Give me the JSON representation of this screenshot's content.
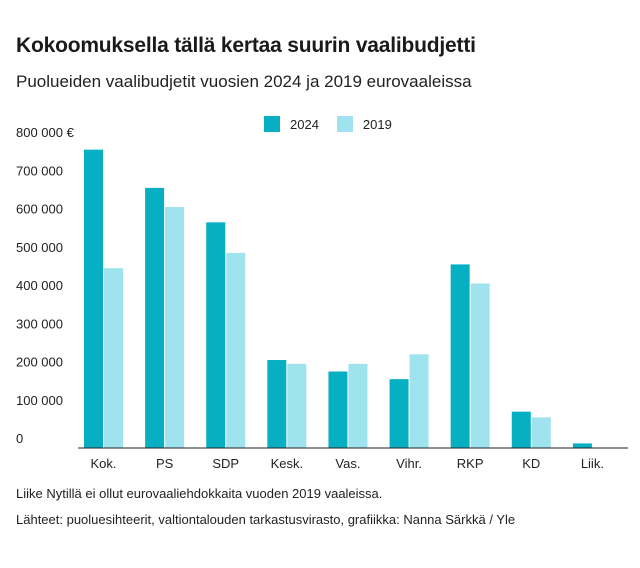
{
  "title": "Kokoomuksella tällä kertaa suurin vaalibudjetti",
  "subtitle": "Puolueiden vaalibudjetit vuosien 2024 ja 2019  eurovaaleissa",
  "footnote": "Liike Nytillä ei ollut eurovaaliehdokkaita vuoden 2019 vaaleissa.",
  "source": "Lähteet: puoluesihteerit, valtiontalouden tarkastusvirasto, grafiikka: Nanna Särkkä / Yle",
  "colors": {
    "series_2024": "#06b0c2",
    "series_2019": "#9ee3ee",
    "axis": "#222222"
  },
  "chart_data": {
    "type": "bar",
    "title": "Kokoomuksella tällä kertaa suurin vaalibudjetti",
    "subtitle": "Puolueiden vaalibudjetit vuosien 2024 ja 2019  eurovaaleissa",
    "categories": [
      "Kok.",
      "PS",
      "SDP",
      "Kesk.",
      "Vas.",
      "Vihr.",
      "RKP",
      "KD",
      "Liik."
    ],
    "series": [
      {
        "name": "2024",
        "values": [
          780000,
          680000,
          590000,
          230000,
          200000,
          180000,
          480000,
          95000,
          12000
        ]
      },
      {
        "name": "2019",
        "values": [
          470000,
          630000,
          510000,
          220000,
          220000,
          245000,
          430000,
          80000,
          null
        ]
      }
    ],
    "ylim": [
      0,
      800000
    ],
    "yticks": [
      0,
      100000,
      200000,
      300000,
      400000,
      500000,
      600000,
      700000,
      800000
    ],
    "ytick_labels": [
      "0",
      "100 000",
      "200 000",
      "300 000",
      "400 000",
      "500 000",
      "600 000",
      "700 000",
      "800 000 €"
    ],
    "xlabel": "",
    "ylabel": "",
    "legend_position": "top-center",
    "grid": false
  }
}
